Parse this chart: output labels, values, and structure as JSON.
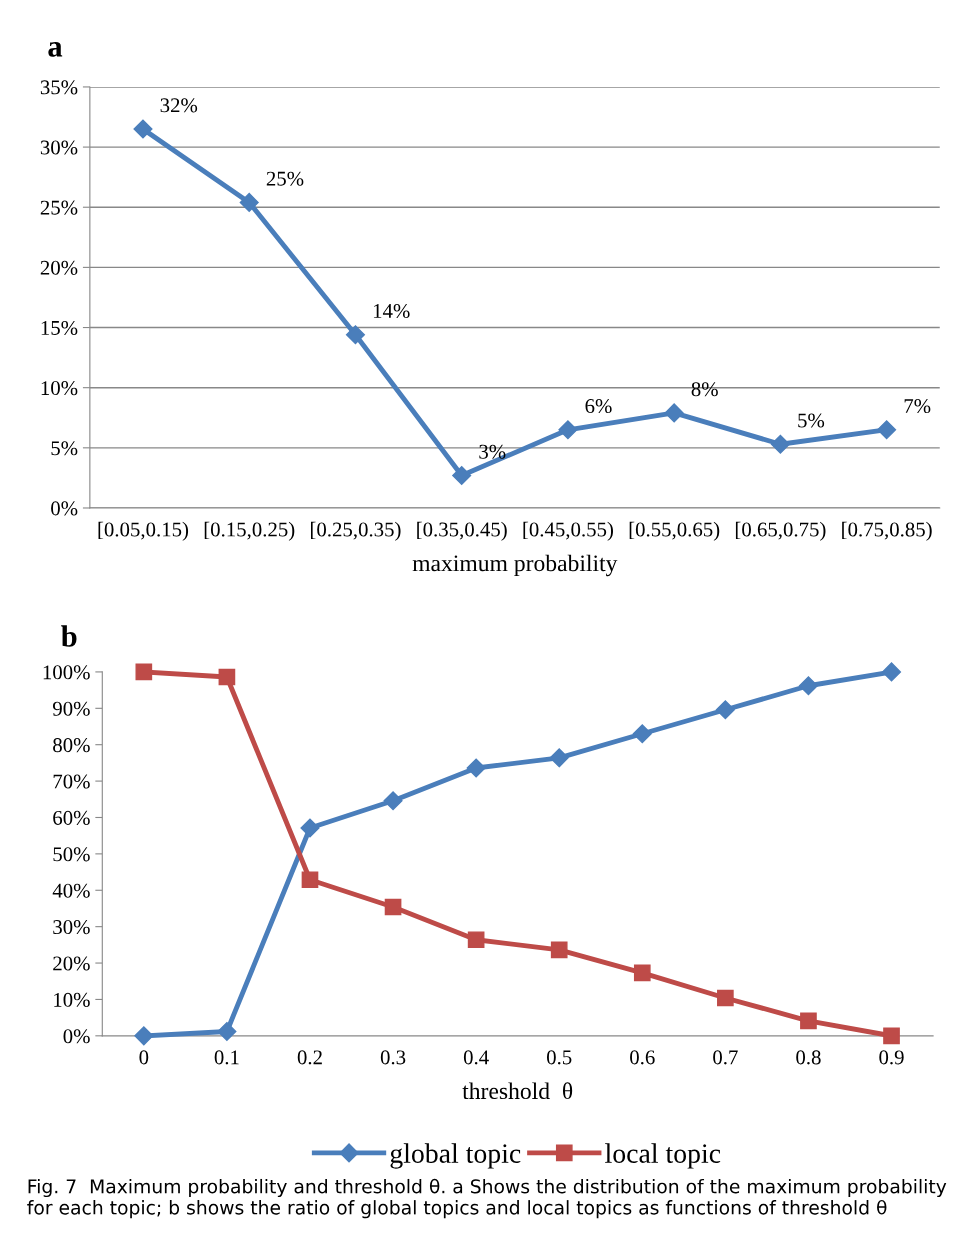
{
  "chart_data": [
    {
      "type": "line",
      "title": "a",
      "xlabel": "maximum probability",
      "categories": [
        "[0.05,0.15)",
        "[0.15,0.25)",
        "[0.25,0.35)",
        "[0.35,0.45)",
        "[0.45,0.55)",
        "[0.55,0.65)",
        "[0.65,0.75)",
        "[0.75,0.85)"
      ],
      "series": [
        {
          "color": "#4a7ebb",
          "marker": "diamond",
          "values": [
            31.5,
            25.4,
            14.4,
            2.7,
            6.5,
            7.9,
            5.3,
            6.5
          ],
          "value_labels": [
            "32%",
            "25%",
            "14%",
            "3%",
            "6%",
            "8%",
            "5%",
            "7%"
          ]
        }
      ],
      "ylim": [
        0,
        35
      ],
      "yticks": [
        {
          "value": 0,
          "label": "0%"
        },
        {
          "value": 5,
          "label": "5%"
        },
        {
          "value": 10,
          "label": "10%"
        },
        {
          "value": 15,
          "label": "15%"
        },
        {
          "value": 20,
          "label": "20%"
        },
        {
          "value": 25,
          "label": "25%"
        },
        {
          "value": 30,
          "label": "30%"
        },
        {
          "value": 35,
          "label": "35%"
        }
      ],
      "grid": "y",
      "line_style": "solid"
    },
    {
      "type": "line",
      "title": "b",
      "xlabel": "threshold  θ",
      "categories": [
        "0",
        "0.1",
        "0.2",
        "0.3",
        "0.4",
        "0.5",
        "0.6",
        "0.7",
        "0.8",
        "0.9"
      ],
      "series": [
        {
          "name": "global topic",
          "color": "#4a7ebb",
          "marker": "diamond",
          "values": [
            0,
            1.2,
            57.1,
            64.6,
            73.6,
            76.4,
            83.0,
            89.6,
            96.2,
            100
          ]
        },
        {
          "name": "local topic",
          "color": "#be4b48",
          "marker": "square",
          "values": [
            100,
            98.6,
            42.9,
            35.4,
            26.4,
            23.6,
            17.3,
            10.4,
            4.1,
            0
          ]
        }
      ],
      "ylim": [
        0,
        100
      ],
      "yticks": [
        {
          "value": 0,
          "label": "0%"
        },
        {
          "value": 10,
          "label": "10%"
        },
        {
          "value": 20,
          "label": "20%"
        },
        {
          "value": 30,
          "label": "30%"
        },
        {
          "value": 40,
          "label": "40%"
        },
        {
          "value": 50,
          "label": "50%"
        },
        {
          "value": 60,
          "label": "60%"
        },
        {
          "value": 70,
          "label": "70%"
        },
        {
          "value": 80,
          "label": "80%"
        },
        {
          "value": 90,
          "label": "90%"
        },
        {
          "value": 100,
          "label": "100%"
        }
      ],
      "grid": false,
      "legend": "bottom",
      "line_style": "solid",
      "annotations": [
        "Fig. 7  Maximum probability and threshold θ. a Shows the distribution of the maximum probability for each topic; b shows the ratio of global topics and local topics as functions of threshold θ"
      ]
    }
  ]
}
